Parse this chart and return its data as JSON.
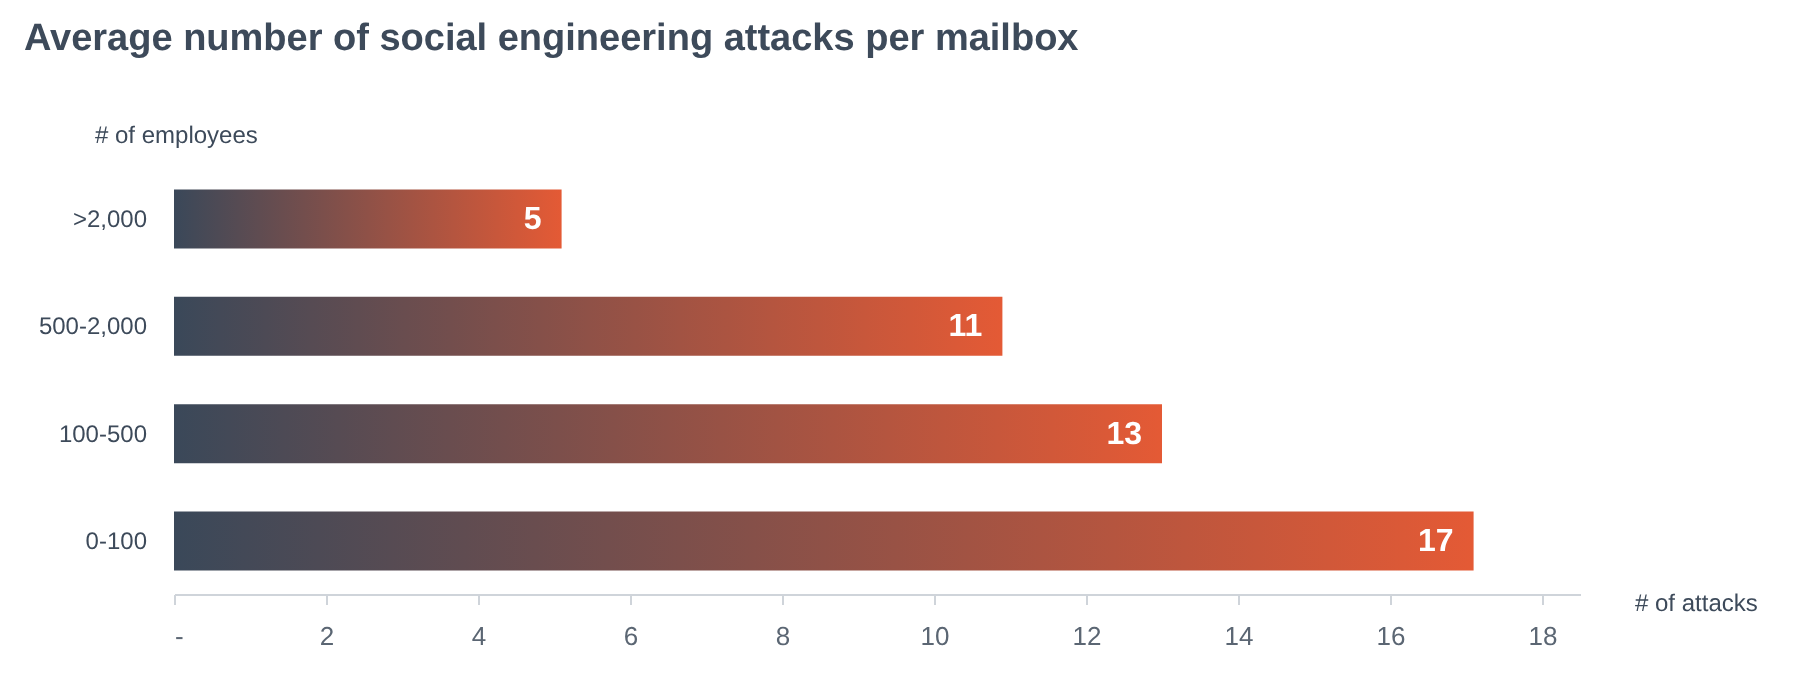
{
  "chart_data": {
    "type": "bar",
    "orientation": "horizontal",
    "title": "Average number of social engineering attacks per mailbox",
    "xlabel": "# of attacks",
    "ylabel": "# of employees",
    "categories": [
      ">2,000",
      "500-2,000",
      "100-500",
      "0-100"
    ],
    "series": [
      {
        "color": "#e45a35",
        "values": [
          5.1,
          10.9,
          13,
          17.1
        ],
        "value_labels": [
          "5",
          "11",
          "13",
          "17"
        ]
      }
    ],
    "xlim": [
      0,
      18.5
    ],
    "xticks": [
      {
        "value": 0,
        "label": "-"
      },
      2,
      4,
      6,
      8,
      10,
      12,
      14,
      16,
      18
    ],
    "grid": false
  }
}
